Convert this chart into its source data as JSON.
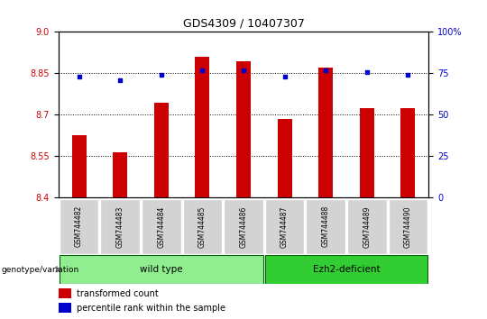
{
  "title": "GDS4309 / 10407307",
  "samples": [
    "GSM744482",
    "GSM744483",
    "GSM744484",
    "GSM744485",
    "GSM744486",
    "GSM744487",
    "GSM744488",
    "GSM744489",
    "GSM744490"
  ],
  "transformed_counts": [
    8.625,
    8.565,
    8.745,
    8.91,
    8.895,
    8.685,
    8.87,
    8.725,
    8.725
  ],
  "percentile_ranks": [
    73,
    71,
    74,
    77,
    77,
    73,
    77,
    76,
    74
  ],
  "ylim_left": [
    8.4,
    9.0
  ],
  "ylim_right": [
    0,
    100
  ],
  "yticks_left": [
    8.4,
    8.55,
    8.7,
    8.85,
    9.0
  ],
  "yticks_right": [
    0,
    25,
    50,
    75,
    100
  ],
  "ytick_labels_right": [
    "0",
    "25",
    "50",
    "75",
    "100%"
  ],
  "bar_color": "#cc0000",
  "dot_color": "#0000cc",
  "groups": [
    {
      "label": "wild type",
      "start": 0,
      "end": 4,
      "color": "#90ee90"
    },
    {
      "label": "Ezh2-deficient",
      "start": 5,
      "end": 8,
      "color": "#32cd32"
    }
  ],
  "legend_bar_label": "transformed count",
  "legend_dot_label": "percentile rank within the sample",
  "genotype_label": "genotype/variation",
  "bar_color_hex": "#cc0000",
  "dot_color_hex": "#0000cc",
  "tick_label_color_left": "#cc0000",
  "tick_label_color_right": "#0000cc",
  "sample_box_color": "#d3d3d3",
  "plot_bg": "#ffffff"
}
